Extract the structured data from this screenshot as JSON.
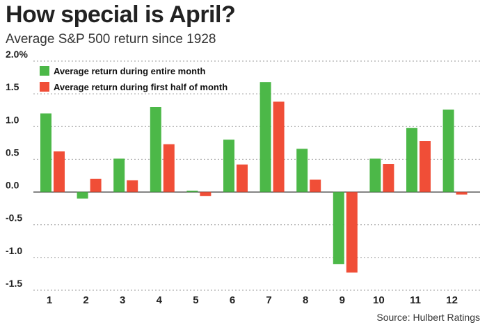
{
  "header": {
    "title": "How special is April?",
    "subtitle": "Average S&P 500 return since 1928"
  },
  "footer": {
    "source": "Source: Hulbert Ratings"
  },
  "colors": {
    "green": "#4cb848",
    "red": "#f04e37",
    "grid": "#999999",
    "zero_line": "#333333"
  },
  "chart_data": {
    "type": "bar",
    "title": "How special is April?",
    "subtitle": "Average S&P 500 return since 1928",
    "categories": [
      "1",
      "2",
      "3",
      "4",
      "5",
      "6",
      "7",
      "8",
      "9",
      "10",
      "11",
      "12"
    ],
    "series": [
      {
        "name": "Average return during entire month",
        "color": "#4cb848",
        "values": [
          1.2,
          -0.1,
          0.51,
          1.3,
          0.02,
          0.8,
          1.68,
          0.66,
          -1.1,
          0.51,
          0.98,
          1.26
        ]
      },
      {
        "name": "Average return during first half of month",
        "color": "#f04e37",
        "values": [
          0.62,
          0.2,
          0.18,
          0.73,
          -0.06,
          0.42,
          1.38,
          0.19,
          -1.23,
          0.43,
          0.78,
          -0.04
        ]
      }
    ],
    "y_ticks": [
      "2.0%",
      "1.5",
      "1.0",
      "0.5",
      "0.0",
      "-0.5",
      "-1.0",
      "-1.5"
    ],
    "ylim": [
      -1.5,
      2.0
    ],
    "grid": true,
    "legend_position": "top-left",
    "xlabel": "",
    "ylabel": ""
  }
}
